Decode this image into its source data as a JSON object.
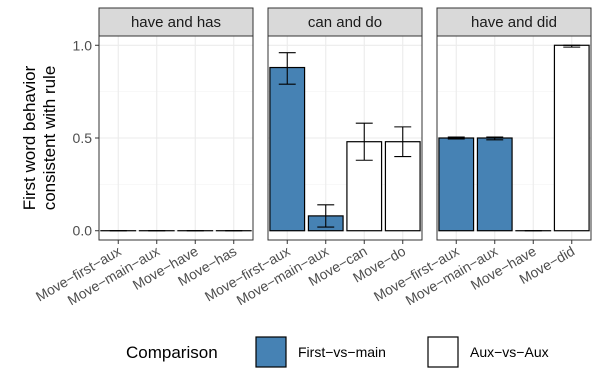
{
  "chart_data": {
    "type": "bar",
    "ylabel": "First word behavior\nconsistent with rule",
    "ylim": [
      -0.05,
      1.05
    ],
    "yticks": [
      "0.0",
      "0.5",
      "1.0"
    ],
    "ytick_values": [
      0.0,
      0.5,
      1.0
    ],
    "grid": true,
    "legend": {
      "title": "Comparison",
      "placement": "bottom",
      "entries": [
        {
          "name": "First−vs−main",
          "color": "#4682b4"
        },
        {
          "name": "Aux−vs−Aux",
          "color": "#ffffff"
        }
      ]
    },
    "panels": [
      {
        "title": "have and has",
        "categories": [
          "Move−first−aux",
          "Move−main−aux",
          "Move−have",
          "Move−has"
        ],
        "comparison": [
          "First−vs−main",
          "First−vs−main",
          "Aux−vs−Aux",
          "Aux−vs−Aux"
        ],
        "values": [
          0.0,
          0.0,
          0.0,
          0.0
        ],
        "err_low": [
          0.0,
          0.0,
          0.0,
          0.0
        ],
        "err_high": [
          0.0,
          0.0,
          0.0,
          0.0
        ]
      },
      {
        "title": "can and do",
        "categories": [
          "Move−first−aux",
          "Move−main−aux",
          "Move−can",
          "Move−do"
        ],
        "comparison": [
          "First−vs−main",
          "First−vs−main",
          "Aux−vs−Aux",
          "Aux−vs−Aux"
        ],
        "values": [
          0.88,
          0.08,
          0.48,
          0.48
        ],
        "err_low": [
          0.79,
          0.02,
          0.38,
          0.4
        ],
        "err_high": [
          0.96,
          0.14,
          0.58,
          0.56
        ]
      },
      {
        "title": "have and did",
        "categories": [
          "Move−first−aux",
          "Move−main−aux",
          "Move−have",
          "Move−did"
        ],
        "comparison": [
          "First−vs−main",
          "First−vs−main",
          "Aux−vs−Aux",
          "Aux−vs−Aux"
        ],
        "values": [
          0.5,
          0.5,
          0.0,
          1.0
        ],
        "err_low": [
          0.495,
          0.49,
          0.0,
          0.99
        ],
        "err_high": [
          0.505,
          0.505,
          0.0,
          1.0
        ]
      }
    ]
  }
}
